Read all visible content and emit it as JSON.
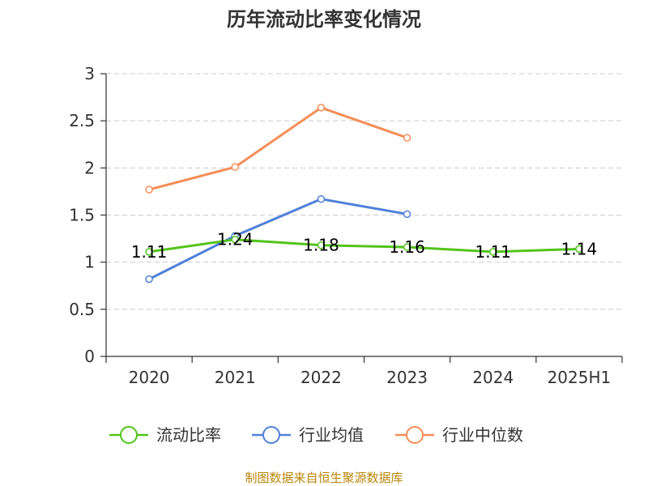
{
  "chart_data": {
    "type": "line",
    "title": "历年流动比率变化情况",
    "categories": [
      "2020",
      "2021",
      "2022",
      "2023",
      "2024",
      "2025H1"
    ],
    "ylim": [
      0,
      3
    ],
    "yticks": [
      "0",
      "0.5",
      "1",
      "1.5",
      "2",
      "2.5",
      "3"
    ],
    "grid": true,
    "legend_position": "bottom",
    "series": [
      {
        "name": "流动比率",
        "color": "#52c41a",
        "values": [
          1.11,
          1.24,
          1.18,
          1.16,
          1.11,
          1.14
        ],
        "labels": [
          "1.11",
          "1.24",
          "1.18",
          "1.16",
          "1.11",
          "1.14"
        ]
      },
      {
        "name": "行业均值",
        "color": "#4f81d9",
        "values": [
          0.82,
          1.28,
          1.67,
          1.51,
          null,
          null
        ]
      },
      {
        "name": "行业中位数",
        "color": "#f58d56",
        "values": [
          1.77,
          2.01,
          2.64,
          2.32,
          null,
          null
        ]
      }
    ]
  },
  "source": "制图数据来自恒生聚源数据库"
}
